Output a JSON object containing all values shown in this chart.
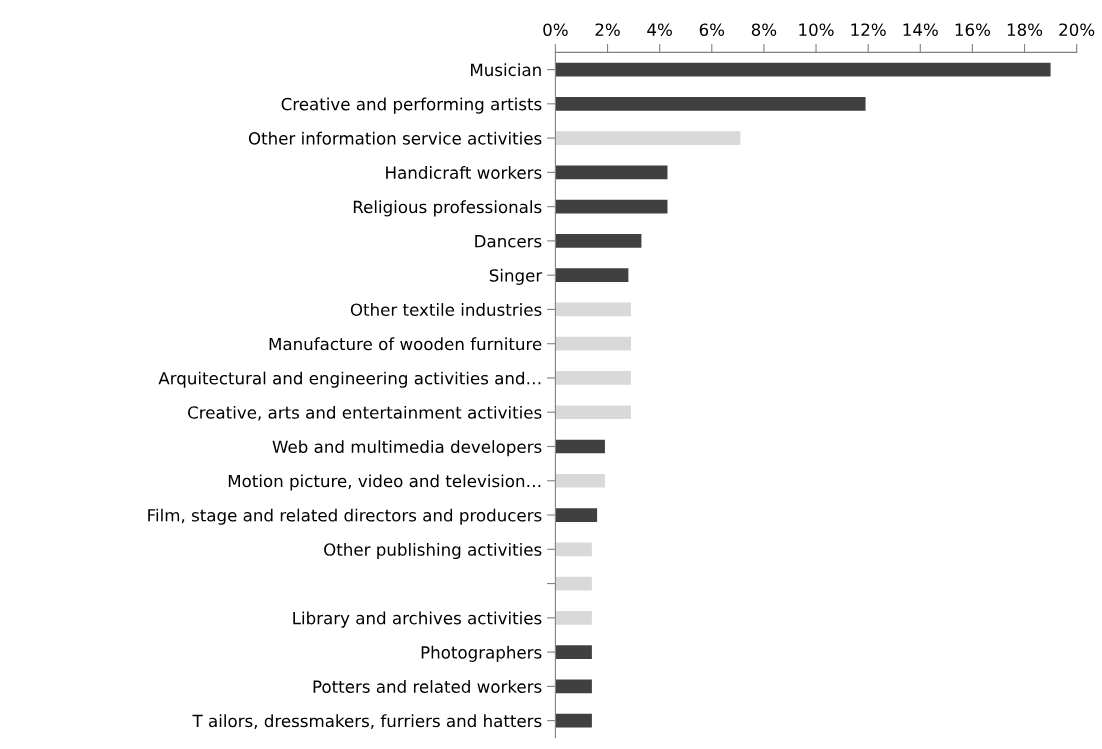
{
  "chart_data": {
    "type": "bar",
    "orientation": "horizontal",
    "categories": [
      "Musician",
      "Creative and performing artists",
      "Other information service activities",
      "Handicraft workers",
      "Religious professionals",
      "Dancers",
      "Singer",
      "Other textile industries",
      "Manufacture of wooden furniture",
      "Arquitectural and engineering activities and…",
      "Creative, arts and entertainment activities",
      "Web and multimedia developers",
      "Motion picture, video and television…",
      "Film, stage and related directors and producers",
      "Other publishing activities",
      null,
      "Library and archives activities",
      "Photographers",
      "Potters and related workers",
      "T ailors, dressmakers, furriers and hatters"
    ],
    "values": [
      19.0,
      11.9,
      7.1,
      4.3,
      4.3,
      3.3,
      2.8,
      2.9,
      2.9,
      2.9,
      2.9,
      1.9,
      1.9,
      1.6,
      1.4,
      1.4,
      1.4,
      1.4,
      1.4,
      1.4
    ],
    "colors": [
      "#404040",
      "#404040",
      "#d9d9d9",
      "#404040",
      "#404040",
      "#404040",
      "#404040",
      "#d9d9d9",
      "#d9d9d9",
      "#d9d9d9",
      "#d9d9d9",
      "#404040",
      "#d9d9d9",
      "#404040",
      "#d9d9d9",
      "#d9d9d9",
      "#d9d9d9",
      "#404040",
      "#404040",
      "#404040"
    ],
    "xlim": [
      0,
      20
    ],
    "xticks": [
      {
        "value": 0,
        "label": "0%"
      },
      {
        "value": 2,
        "label": "2%"
      },
      {
        "value": 4,
        "label": "4%"
      },
      {
        "value": 6,
        "label": "6%"
      },
      {
        "value": 8,
        "label": "8%"
      },
      {
        "value": 10,
        "label": "10%"
      },
      {
        "value": 12,
        "label": "12%"
      },
      {
        "value": 14,
        "label": "14%"
      },
      {
        "value": 16,
        "label": "16%"
      },
      {
        "value": 18,
        "label": "18%"
      },
      {
        "value": 20,
        "label": "20%"
      }
    ],
    "grid": false,
    "legend": false
  }
}
